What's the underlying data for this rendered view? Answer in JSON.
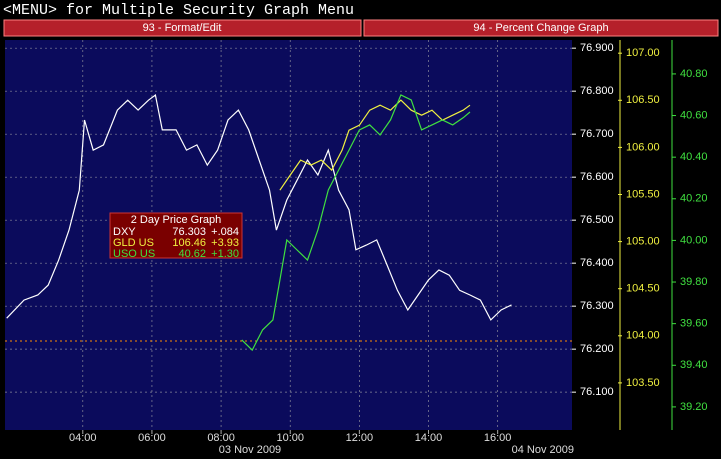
{
  "header": {
    "menu": "<MENU> for Multiple Security Graph Menu",
    "buttons": [
      "93 - Format/Edit",
      "94 - Percent Change Graph"
    ]
  },
  "chart_data": {
    "type": "line",
    "grid": true,
    "legend_box": {
      "title": "2 Day Price Graph",
      "rows": [
        {
          "last": "76.303",
          "change": "+.084"
        },
        {
          "last": "106.46",
          "change": "+3.93"
        },
        {
          "last": "40.62",
          "change": "+1.30"
        }
      ]
    },
    "date_labels": [
      "03 Nov 2009",
      "04 Nov 2009"
    ],
    "xlim": [
      1.75,
      18.15
    ],
    "xticks": [
      {
        "value": 4,
        "label": "04:00"
      },
      {
        "value": 6,
        "label": "06:00"
      },
      {
        "value": 8,
        "label": "08:00"
      },
      {
        "value": 10,
        "label": "10:00"
      },
      {
        "value": 12,
        "label": "12:00"
      },
      {
        "value": 14,
        "label": "14:00"
      },
      {
        "value": 16,
        "label": "16:00"
      }
    ],
    "ylim": [
      76.012,
      76.919
    ],
    "yticks": [
      {
        "value": 76.1,
        "label": "76.100"
      },
      {
        "value": 76.2,
        "label": "76.200"
      },
      {
        "value": 76.3,
        "label": "76.300"
      },
      {
        "value": 76.4,
        "label": "76.400"
      },
      {
        "value": 76.5,
        "label": "76.500"
      },
      {
        "value": 76.6,
        "label": "76.600"
      },
      {
        "value": 76.7,
        "label": "76.700"
      },
      {
        "value": 76.8,
        "label": "76.800"
      },
      {
        "value": 76.9,
        "label": "76.900"
      }
    ],
    "y2lim": [
      103.0,
      107.14
    ],
    "y2ticks": [
      {
        "value": 103.5,
        "label": "103.50"
      },
      {
        "value": 104,
        "label": "104.00"
      },
      {
        "value": 104.5,
        "label": "104.50"
      },
      {
        "value": 105,
        "label": "105.00"
      },
      {
        "value": 105.5,
        "label": "105.50"
      },
      {
        "value": 106,
        "label": "106.00"
      },
      {
        "value": 106.5,
        "label": "106.50"
      },
      {
        "value": 107,
        "label": "107.00"
      }
    ],
    "y3lim": [
      39.089,
      40.963
    ],
    "y3ticks": [
      {
        "value": 39.2,
        "label": "39.20"
      },
      {
        "value": 39.4,
        "label": "39.40"
      },
      {
        "value": 39.6,
        "label": "39.60"
      },
      {
        "value": 39.8,
        "label": "39.80"
      },
      {
        "value": 40,
        "label": "40.00"
      },
      {
        "value": 40.2,
        "label": "40.20"
      },
      {
        "value": 40.4,
        "label": "40.40"
      },
      {
        "value": 40.6,
        "label": "40.60"
      },
      {
        "value": 40.8,
        "label": "40.80"
      }
    ],
    "reference_line": {
      "value": 76.219,
      "color": "#ff8c00"
    },
    "series": [
      {
        "name": "DXY",
        "color": "#ffffff",
        "axis": "y",
        "x": [
          1.8,
          2.3,
          2.7,
          3.0,
          3.3,
          3.6,
          3.9,
          4.05,
          4.3,
          4.6,
          5.0,
          5.3,
          5.6,
          5.9,
          6.1,
          6.3,
          6.7,
          7.0,
          7.3,
          7.6,
          7.9,
          8.2,
          8.5,
          8.8,
          9.1,
          9.4,
          9.6,
          9.9,
          10.2,
          10.5,
          10.8,
          11.1,
          11.4,
          11.7,
          11.9,
          12.2,
          12.5,
          12.8,
          13.1,
          13.4,
          13.7,
          14.0,
          14.3,
          14.6,
          14.9,
          15.2,
          15.5,
          15.8,
          16.1,
          16.4
        ],
        "values": [
          76.272,
          76.314,
          76.326,
          76.349,
          76.407,
          76.477,
          76.57,
          76.733,
          76.663,
          76.675,
          76.756,
          76.779,
          76.756,
          76.779,
          76.791,
          76.71,
          76.71,
          76.663,
          76.675,
          76.628,
          76.663,
          76.733,
          76.756,
          76.71,
          76.64,
          76.57,
          76.477,
          76.547,
          76.593,
          76.64,
          76.605,
          76.663,
          76.57,
          76.524,
          76.431,
          76.442,
          76.454,
          76.396,
          76.337,
          76.291,
          76.326,
          76.361,
          76.384,
          76.372,
          76.337,
          76.326,
          76.314,
          76.268,
          76.291,
          76.303
        ]
      },
      {
        "name": "GLD US",
        "color": "#f0f040",
        "axis": "y2",
        "x": [
          9.7,
          10.0,
          10.3,
          10.6,
          10.9,
          11.2,
          11.5,
          11.7,
          12.0,
          12.3,
          12.6,
          12.9,
          13.2,
          13.5,
          13.8,
          14.1,
          14.4,
          14.7,
          15.0,
          15.2
        ],
        "values": [
          105.546,
          105.706,
          105.865,
          105.812,
          105.865,
          105.759,
          105.971,
          106.183,
          106.236,
          106.395,
          106.448,
          106.395,
          106.502,
          106.395,
          106.342,
          106.395,
          106.289,
          106.342,
          106.395,
          106.448
        ]
      },
      {
        "name": "USO US",
        "color": "#40e040",
        "axis": "y3",
        "x": [
          8.6,
          8.9,
          9.2,
          9.5,
          9.7,
          9.9,
          10.2,
          10.5,
          10.8,
          11.1,
          11.4,
          11.7,
          12.0,
          12.3,
          12.6,
          12.9,
          13.2,
          13.5,
          13.8,
          14.1,
          14.4,
          14.7,
          15.0,
          15.2
        ],
        "values": [
          39.522,
          39.473,
          39.57,
          39.618,
          39.81,
          40.002,
          39.954,
          39.906,
          40.05,
          40.242,
          40.338,
          40.434,
          40.531,
          40.555,
          40.507,
          40.579,
          40.699,
          40.675,
          40.531,
          40.555,
          40.579,
          40.555,
          40.589,
          40.617
        ]
      }
    ]
  }
}
